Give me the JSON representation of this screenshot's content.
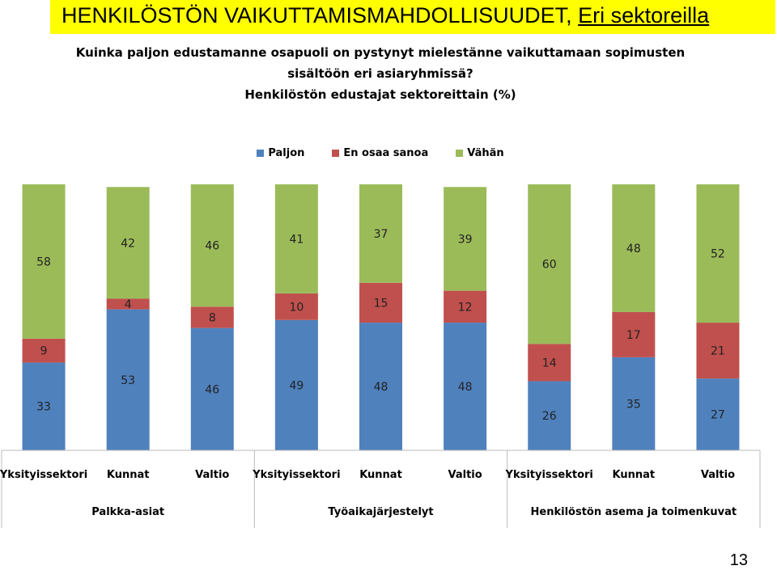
{
  "slide": {
    "title_main": "HENKILÖSTÖN VAIKUTTAMISMAHDOLLISUUDET,",
    "title_link": "Eri sektoreilla",
    "page_number": "13"
  },
  "chart_data": {
    "type": "bar",
    "stacked": true,
    "title_lines": [
      "Kuinka paljon edustamanne osapuoli on pystynyt mielestänne vaikuttamaan sopimusten",
      "sisältöön eri asiaryhmissä?",
      "Henkilöstön edustajat sektoreittain (%)"
    ],
    "legend": [
      {
        "name": "Paljon",
        "color": "#4f81bd"
      },
      {
        "name": "En osaa sanoa",
        "color": "#c0504d"
      },
      {
        "name": "Vähän",
        "color": "#9bbb59"
      }
    ],
    "legend_position": "top",
    "categories": [
      "Yksityissektori",
      "Kunnat",
      "Valtio",
      "Yksityissektori",
      "Kunnat",
      "Valtio",
      "Yksityissektori",
      "Kunnat",
      "Valtio"
    ],
    "groups": [
      {
        "name": "Palkka-asiat",
        "span": 3
      },
      {
        "name": "Työaikajärjestelyt",
        "span": 3
      },
      {
        "name": "Henkilöstön asema ja toimenkuvat",
        "span": 3
      }
    ],
    "series": [
      {
        "name": "Paljon",
        "color": "#4f81bd",
        "values": [
          33,
          53,
          46,
          49,
          48,
          48,
          26,
          35,
          27
        ]
      },
      {
        "name": "En osaa sanoa",
        "color": "#c0504d",
        "values": [
          9,
          4,
          8,
          10,
          15,
          12,
          14,
          17,
          21
        ]
      },
      {
        "name": "Vähän",
        "color": "#9bbb59",
        "values": [
          58,
          42,
          46,
          41,
          37,
          39,
          60,
          48,
          52
        ]
      }
    ],
    "ylim": [
      0,
      100
    ],
    "grid": false
  }
}
